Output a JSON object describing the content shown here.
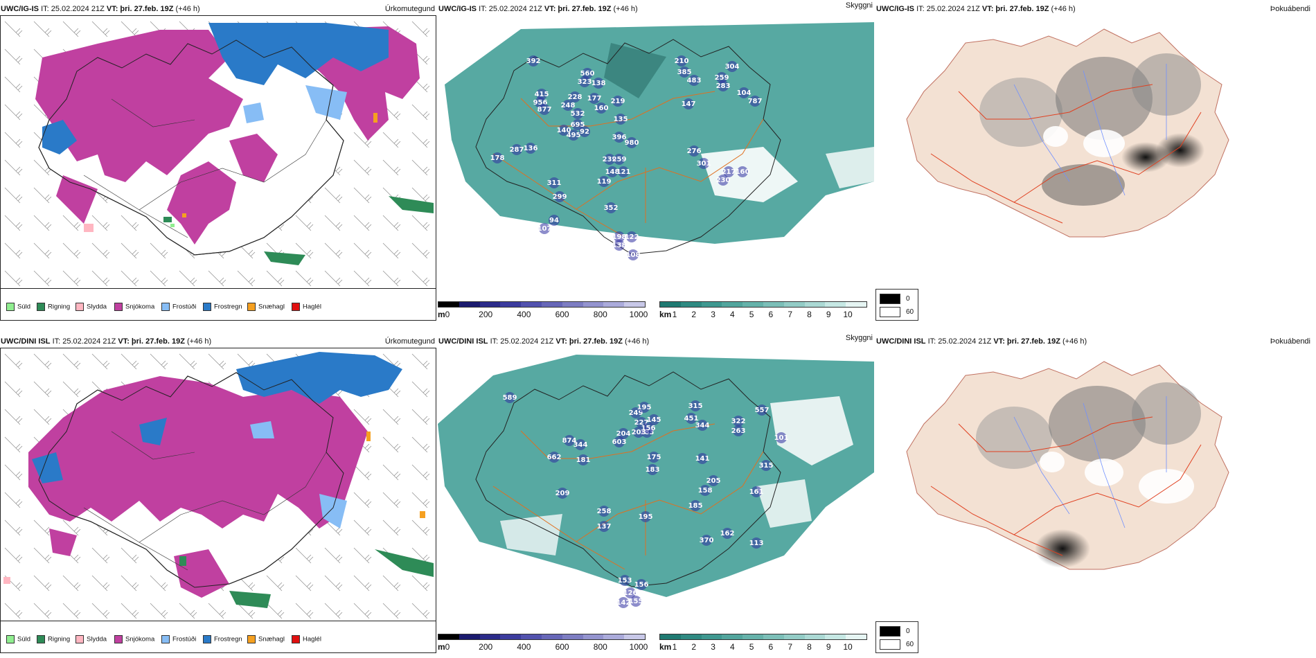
{
  "rows": [
    {
      "model": "UWC/IG-IS",
      "panels": {
        "precip": {
          "title_model": "UWC/IG-IS",
          "it": "IT: 25.02.2024 21Z",
          "vt_label": "VT:",
          "vt_value": "þri. 27.feb. 19Z",
          "lead": "(+46 h)",
          "field": "Úrkomutegund"
        },
        "cloud": {
          "title_model": "UWC/IG-IS",
          "it": "IT: 25.02.2024 21Z",
          "vt_label": "VT:",
          "vt_value": "þri. 27.feb. 19Z",
          "lead": "(+46 h)",
          "field": "Skyggni",
          "labels": [
            {
              "t": "392"
            },
            {
              "t": "956"
            },
            {
              "t": "877"
            },
            {
              "t": "495"
            },
            {
              "t": "92"
            },
            {
              "t": "140"
            },
            {
              "t": "415"
            },
            {
              "t": "228"
            },
            {
              "t": "248"
            },
            {
              "t": "532"
            },
            {
              "t": "695"
            },
            {
              "t": "560"
            },
            {
              "t": "323"
            },
            {
              "t": "138"
            },
            {
              "t": "177"
            },
            {
              "t": "160"
            },
            {
              "t": "219"
            },
            {
              "t": "135"
            },
            {
              "t": "396"
            },
            {
              "t": "980"
            },
            {
              "t": "239"
            },
            {
              "t": "259"
            },
            {
              "t": "148"
            },
            {
              "t": "119"
            },
            {
              "t": "121"
            },
            {
              "t": "385"
            },
            {
              "t": "483"
            },
            {
              "t": "210"
            },
            {
              "t": "259"
            },
            {
              "t": "283"
            },
            {
              "t": "304"
            },
            {
              "t": "104"
            },
            {
              "t": "787"
            },
            {
              "t": "147"
            },
            {
              "t": "276"
            },
            {
              "t": "301"
            },
            {
              "t": "217"
            },
            {
              "t": "160"
            },
            {
              "t": "230"
            },
            {
              "t": "311"
            },
            {
              "t": "299"
            },
            {
              "t": "352"
            },
            {
              "t": "198"
            },
            {
              "t": "138"
            },
            {
              "t": "122"
            },
            {
              "t": "108"
            },
            {
              "t": "107"
            },
            {
              "t": "94"
            },
            {
              "t": "178"
            },
            {
              "t": "287"
            },
            {
              "t": "136"
            }
          ]
        },
        "fog": {
          "title_model": "UWC/IG-IS",
          "it": "IT: 25.02.2024 21Z",
          "vt_label": "VT:",
          "vt_value": "þri. 27.feb. 19Z",
          "lead": "(+46 h)",
          "field": "Þokuábendi"
        }
      }
    },
    {
      "model": "UWC/DINI ISL",
      "panels": {
        "precip": {
          "title_model": "UWC/DINI ISL",
          "it": "IT: 25.02.2024 21Z",
          "vt_label": "VT:",
          "vt_value": "þri. 27.feb. 19Z",
          "lead": "(+46 h)",
          "field": "Úrkomutegund"
        },
        "cloud": {
          "title_model": "UWC/DINI ISL",
          "it": "IT: 25.02.2024 21Z",
          "vt_label": "VT:",
          "vt_value": "þri. 27.feb. 19Z",
          "lead": "(+46 h)",
          "field": "Skyggni",
          "labels": [
            {
              "t": "589"
            },
            {
              "t": "874"
            },
            {
              "t": "662"
            },
            {
              "t": "344"
            },
            {
              "t": "181"
            },
            {
              "t": "204"
            },
            {
              "t": "603"
            },
            {
              "t": "249"
            },
            {
              "t": "195"
            },
            {
              "t": "183"
            },
            {
              "t": "227"
            },
            {
              "t": "145"
            },
            {
              "t": "156"
            },
            {
              "t": "203"
            },
            {
              "t": "315"
            },
            {
              "t": "451"
            },
            {
              "t": "344"
            },
            {
              "t": "322"
            },
            {
              "t": "263"
            },
            {
              "t": "557"
            },
            {
              "t": "101"
            },
            {
              "t": "175"
            },
            {
              "t": "183"
            },
            {
              "t": "141"
            },
            {
              "t": "205"
            },
            {
              "t": "158"
            },
            {
              "t": "315"
            },
            {
              "t": "161"
            },
            {
              "t": "209"
            },
            {
              "t": "258"
            },
            {
              "t": "137"
            },
            {
              "t": "195"
            },
            {
              "t": "185"
            },
            {
              "t": "370"
            },
            {
              "t": "162"
            },
            {
              "t": "113"
            },
            {
              "t": "153"
            },
            {
              "t": "156"
            },
            {
              "t": "126"
            },
            {
              "t": "142"
            },
            {
              "t": "155"
            }
          ]
        },
        "fog": {
          "title_model": "UWC/DINI ISL",
          "it": "IT: 25.02.2024 21Z",
          "vt_label": "VT:",
          "vt_value": "þri. 27.feb. 19Z",
          "lead": "(+46 h)",
          "field": "Þokuábendi"
        }
      }
    }
  ],
  "precip_legend": [
    {
      "label": "Súld",
      "color": "#90ee90"
    },
    {
      "label": "Rigning",
      "color": "#2e8b57"
    },
    {
      "label": "Slydda",
      "color": "#ffb6c1"
    },
    {
      "label": "Snjókoma",
      "color": "#c040a0"
    },
    {
      "label": "Frostúði",
      "color": "#87bdf5"
    },
    {
      "label": "Frostregn",
      "color": "#2a7ac8"
    },
    {
      "label": "Snæhagl",
      "color": "#f5a020"
    },
    {
      "label": "Haglél",
      "color": "#e01010"
    }
  ],
  "cloudbase_bar": {
    "unit": "m",
    "ticks": [
      "0",
      "200",
      "400",
      "600",
      "800",
      "1000"
    ],
    "colors": [
      "#000000",
      "#1a1a6e",
      "#2b2b8a",
      "#3c3c9e",
      "#5252ae",
      "#6767b8",
      "#7d7dc2",
      "#9494cf",
      "#ababdb",
      "#c8c8e8"
    ]
  },
  "visibility_bar": {
    "unit": "km",
    "ticks": [
      "1",
      "2",
      "3",
      "4",
      "5",
      "6",
      "7",
      "8",
      "9",
      "10"
    ],
    "colors": [
      "#1f7a72",
      "#2f8a82",
      "#3f9890",
      "#52a59d",
      "#66b2aa",
      "#7cbfb8",
      "#93ccc6",
      "#abd9d4",
      "#c6e8e4",
      "#e6f5f3"
    ]
  },
  "fog_legend": [
    {
      "label": "0",
      "color": "#000000"
    },
    {
      "label": "60",
      "color": "#ffffff"
    }
  ],
  "colors": {
    "snow": "#c040a0",
    "freezing_rain": "#2a7ac8",
    "freezing_drizzle": "#87bdf5",
    "rain": "#2e8b57",
    "teal": "#3a9a92",
    "land": "#f3e1d3",
    "roads": "#e06020",
    "rivers": "#7090ff"
  }
}
